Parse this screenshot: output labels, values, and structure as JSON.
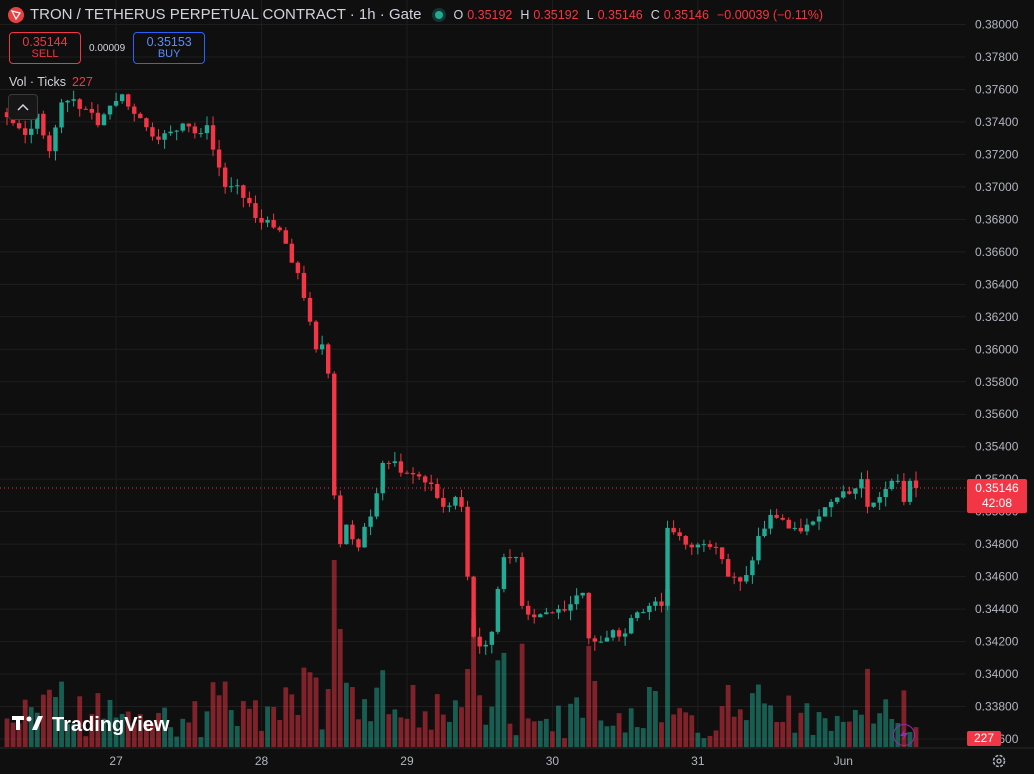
{
  "header": {
    "title": "TRON / TETHERUS PERPETUAL CONTRACT · 1h · Gate",
    "open_label": "O",
    "open": "0.35192",
    "high_label": "H",
    "high": "0.35192",
    "low_label": "L",
    "low": "0.35146",
    "close_label": "C",
    "close": "0.35146",
    "change": "−0.00039 (−0.11%)"
  },
  "trade": {
    "sell_price": "0.35144",
    "sell_label": "SELL",
    "spread": "0.00009",
    "buy_price": "0.35153",
    "buy_label": "BUY"
  },
  "volume_legend": {
    "label": "Vol · Ticks",
    "value": "227"
  },
  "brand": {
    "name": "TradingView"
  },
  "last_price_tag": {
    "price": "0.35146",
    "countdown": "42:08"
  },
  "volume_tag": "227",
  "icons": [
    "tron-logo-icon",
    "chevron-up-icon",
    "tradingview-logo-icon",
    "lightning-icon",
    "gear-icon"
  ],
  "colors": {
    "up": "#22ab94",
    "down": "#f23645",
    "background": "#0f0f0f",
    "grid": "#1e1e1e"
  },
  "chart_data": {
    "type": "candlestick",
    "y_ticks": [
      "0.38000",
      "0.37800",
      "0.37600",
      "0.37400",
      "0.37200",
      "0.37000",
      "0.36800",
      "0.36600",
      "0.36400",
      "0.36200",
      "0.36000",
      "0.35800",
      "0.35600",
      "0.35400",
      "0.35200",
      "0.35000",
      "0.34800",
      "0.34600",
      "0.34400",
      "0.34200",
      "0.34000",
      "0.33800",
      "0.33600"
    ],
    "ylim": [
      0.336,
      0.38
    ],
    "x_ticks": [
      {
        "label": "27",
        "index": 18
      },
      {
        "label": "28",
        "index": 42
      },
      {
        "label": "29",
        "index": 66
      },
      {
        "label": "30",
        "index": 90
      },
      {
        "label": "31",
        "index": 114
      },
      {
        "label": "Jun",
        "index": 138
      }
    ],
    "grid": true,
    "last_price": 0.35146,
    "keypoints_close": [
      [
        0,
        0.3743
      ],
      [
        3,
        0.3732
      ],
      [
        5,
        0.3745
      ],
      [
        7,
        0.3722
      ],
      [
        9,
        0.3752
      ],
      [
        11,
        0.3754
      ],
      [
        13,
        0.3748
      ],
      [
        15,
        0.3738
      ],
      [
        17,
        0.375
      ],
      [
        19,
        0.3757
      ],
      [
        21,
        0.3745
      ],
      [
        24,
        0.3731
      ],
      [
        27,
        0.3734
      ],
      [
        29,
        0.3739
      ],
      [
        31,
        0.3733
      ],
      [
        33,
        0.3738
      ],
      [
        34,
        0.3723
      ],
      [
        36,
        0.37
      ],
      [
        38,
        0.3701
      ],
      [
        40,
        0.369
      ],
      [
        42,
        0.3678
      ],
      [
        44,
        0.3675
      ],
      [
        46,
        0.3665
      ],
      [
        48,
        0.3647
      ],
      [
        50,
        0.3617
      ],
      [
        51,
        0.36
      ],
      [
        52,
        0.3603
      ],
      [
        53,
        0.3585
      ],
      [
        54,
        0.351
      ],
      [
        55,
        0.348
      ],
      [
        56,
        0.3492
      ],
      [
        57,
        0.3483
      ],
      [
        58,
        0.3478
      ],
      [
        60,
        0.3497
      ],
      [
        62,
        0.353
      ],
      [
        64,
        0.3531
      ],
      [
        65,
        0.3524
      ],
      [
        67,
        0.3523
      ],
      [
        69,
        0.3518
      ],
      [
        70,
        0.3517
      ],
      [
        72,
        0.3503
      ],
      [
        74,
        0.3509
      ],
      [
        75,
        0.3503
      ],
      [
        76,
        0.346
      ],
      [
        77,
        0.3423
      ],
      [
        78,
        0.3417
      ],
      [
        79,
        0.3418
      ],
      [
        80,
        0.3426
      ],
      [
        82,
        0.3472
      ],
      [
        84,
        0.3472
      ],
      [
        85,
        0.3442
      ],
      [
        87,
        0.3435
      ],
      [
        89,
        0.3438
      ],
      [
        91,
        0.344
      ],
      [
        93,
        0.3443
      ],
      [
        95,
        0.345
      ],
      [
        96,
        0.3422
      ],
      [
        98,
        0.342
      ],
      [
        100,
        0.3427
      ],
      [
        102,
        0.3425
      ],
      [
        104,
        0.3438
      ],
      [
        106,
        0.3442
      ],
      [
        108,
        0.3442
      ],
      [
        109,
        0.349
      ],
      [
        111,
        0.3485
      ],
      [
        113,
        0.3478
      ],
      [
        115,
        0.348
      ],
      [
        117,
        0.3478
      ],
      [
        119,
        0.346
      ],
      [
        121,
        0.3457
      ],
      [
        123,
        0.347
      ],
      [
        124,
        0.3485
      ],
      [
        126,
        0.3498
      ],
      [
        128,
        0.3495
      ],
      [
        130,
        0.349
      ],
      [
        132,
        0.3492
      ],
      [
        134,
        0.3497
      ],
      [
        136,
        0.3506
      ],
      [
        139,
        0.3511
      ],
      [
        141,
        0.352
      ],
      [
        142,
        0.3503
      ],
      [
        144,
        0.3509
      ],
      [
        146,
        0.3519
      ],
      [
        147,
        0.3519
      ],
      [
        148,
        0.3506
      ],
      [
        149,
        0.3519
      ],
      [
        150,
        0.3515
      ]
    ],
    "volume_by_index": {
      "53": 58,
      "54": 190,
      "55": 118,
      "67": 62,
      "76": 78,
      "97": 66,
      "106": 60,
      "107": 56,
      "146": 28,
      "147": 24,
      "149": 15
    }
  }
}
